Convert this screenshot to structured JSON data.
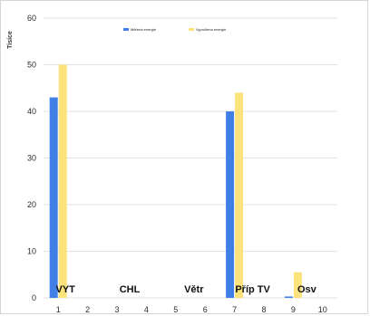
{
  "chart_data": {
    "type": "bar",
    "x": [
      1,
      2,
      3,
      4,
      5,
      6,
      7,
      8,
      9,
      10
    ],
    "series": [
      {
        "name": "Měřená energie",
        "color": "#3f7fe6",
        "values": [
          43,
          0,
          0,
          0,
          0,
          0,
          40,
          0,
          0.3,
          0
        ]
      },
      {
        "name": "Vypočtená energie",
        "color": "#fbe27a",
        "values": [
          50,
          0,
          0,
          0,
          0,
          0,
          44,
          0,
          5.5,
          0
        ]
      }
    ],
    "xlabel": "",
    "ylabel": "Tisíce",
    "ylim": [
      0,
      60
    ],
    "yticks": [
      0,
      10,
      20,
      30,
      40,
      50,
      60
    ],
    "grid": true,
    "legend_position": "top-center",
    "annotations": [
      "VYT",
      "CHL",
      "Větr",
      "Příp TV",
      "Osv"
    ]
  }
}
